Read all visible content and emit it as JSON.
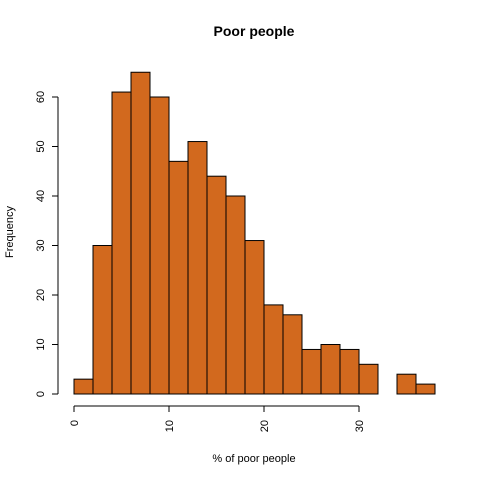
{
  "chart_data": {
    "type": "bar",
    "title": "Poor people",
    "xlabel": "% of poor people",
    "ylabel": "Frequency",
    "bin_width": 2,
    "bins": [
      {
        "x0": 0,
        "x1": 2,
        "count": 3
      },
      {
        "x0": 2,
        "x1": 4,
        "count": 30
      },
      {
        "x0": 4,
        "x1": 6,
        "count": 61
      },
      {
        "x0": 6,
        "x1": 8,
        "count": 65
      },
      {
        "x0": 8,
        "x1": 10,
        "count": 60
      },
      {
        "x0": 10,
        "x1": 12,
        "count": 47
      },
      {
        "x0": 12,
        "x1": 14,
        "count": 51
      },
      {
        "x0": 14,
        "x1": 16,
        "count": 44
      },
      {
        "x0": 16,
        "x1": 18,
        "count": 40
      },
      {
        "x0": 18,
        "x1": 20,
        "count": 31
      },
      {
        "x0": 20,
        "x1": 22,
        "count": 18
      },
      {
        "x0": 22,
        "x1": 24,
        "count": 16
      },
      {
        "x0": 24,
        "x1": 26,
        "count": 9
      },
      {
        "x0": 26,
        "x1": 28,
        "count": 10
      },
      {
        "x0": 28,
        "x1": 30,
        "count": 9
      },
      {
        "x0": 30,
        "x1": 32,
        "count": 6
      },
      {
        "x0": 32,
        "x1": 34,
        "count": 0
      },
      {
        "x0": 34,
        "x1": 36,
        "count": 4
      },
      {
        "x0": 36,
        "x1": 38,
        "count": 2
      }
    ],
    "xlim": [
      0,
      38
    ],
    "ylim": [
      0,
      65
    ],
    "x_ticks": [
      "0",
      "10",
      "20",
      "30"
    ],
    "y_ticks": [
      "0",
      "10",
      "20",
      "30",
      "40",
      "50",
      "60"
    ],
    "bar_color": "#d2691e",
    "grid": false
  }
}
